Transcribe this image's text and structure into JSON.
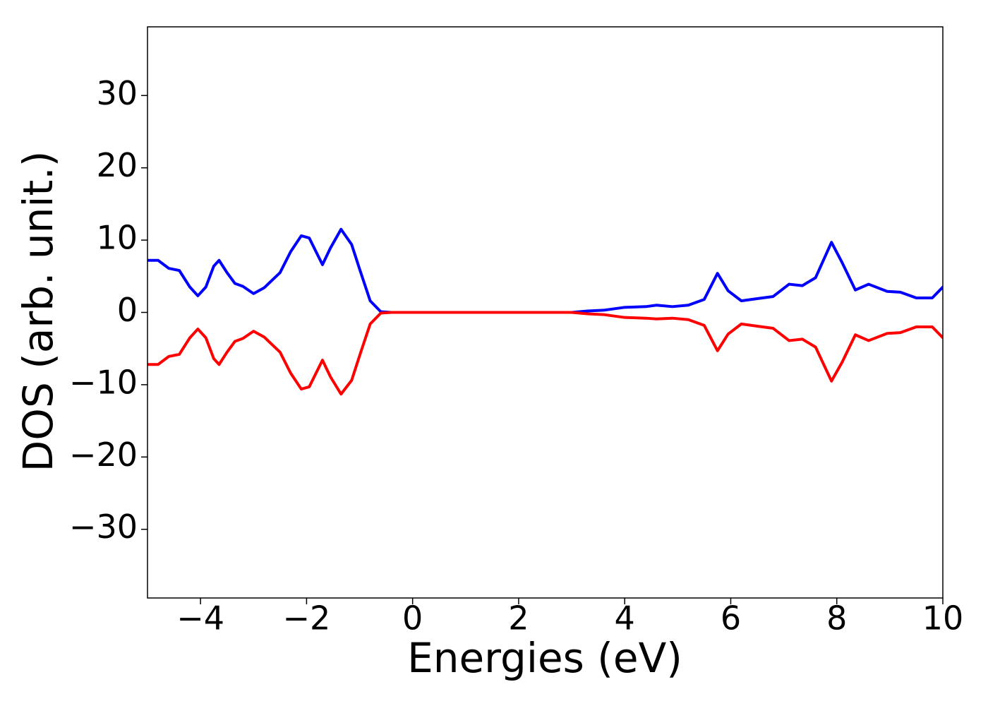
{
  "chart_data": {
    "type": "line",
    "xlabel": "Energies (eV)",
    "ylabel": "DOS (arb. unit.)",
    "x": [
      -5,
      -4.8,
      -4.6,
      -4.4,
      -4.2,
      -4.05,
      -3.9,
      -3.75,
      -3.65,
      -3.5,
      -3.35,
      -3.2,
      -3.0,
      -2.8,
      -2.5,
      -2.3,
      -2.1,
      -1.95,
      -1.7,
      -1.55,
      -1.35,
      -1.15,
      -1.0,
      -0.8,
      -0.6,
      -0.4,
      0,
      1,
      2,
      3,
      3.3,
      3.6,
      4.0,
      4.4,
      4.6,
      4.9,
      5.2,
      5.5,
      5.75,
      5.95,
      6.2,
      6.5,
      6.8,
      7.1,
      7.35,
      7.6,
      7.9,
      8.1,
      8.35,
      8.6,
      8.95,
      9.2,
      9.5,
      9.8,
      10
    ],
    "series": [
      {
        "color": "#0000ff",
        "values": [
          7.2,
          7.2,
          6.1,
          5.8,
          3.5,
          2.3,
          3.5,
          6.4,
          7.2,
          5.5,
          4.0,
          3.6,
          2.6,
          3.4,
          5.5,
          8.4,
          10.6,
          10.3,
          6.6,
          8.9,
          11.5,
          9.4,
          6.0,
          1.6,
          0.1,
          0,
          0,
          0,
          0,
          0,
          0.2,
          0.3,
          0.7,
          0.8,
          1.0,
          0.8,
          1.0,
          1.8,
          5.4,
          3.0,
          1.6,
          1.9,
          2.2,
          3.9,
          3.7,
          4.8,
          9.7,
          6.9,
          3.1,
          3.9,
          2.9,
          2.8,
          2.0,
          2.0,
          3.5
        ]
      },
      {
        "color": "#ff0000",
        "values": [
          -7.2,
          -7.2,
          -6.1,
          -5.8,
          -3.5,
          -2.3,
          -3.5,
          -6.4,
          -7.2,
          -5.5,
          -4.0,
          -3.6,
          -2.6,
          -3.4,
          -5.5,
          -8.4,
          -10.6,
          -10.3,
          -6.6,
          -8.9,
          -11.3,
          -9.4,
          -6.0,
          -1.6,
          -0.1,
          0,
          0,
          0,
          0,
          0,
          -0.2,
          -0.3,
          -0.7,
          -0.8,
          -0.9,
          -0.8,
          -1.0,
          -1.8,
          -5.3,
          -3.0,
          -1.6,
          -1.9,
          -2.2,
          -3.9,
          -3.7,
          -4.8,
          -9.5,
          -6.9,
          -3.1,
          -3.9,
          -2.9,
          -2.8,
          -2.0,
          -2.0,
          -3.5
        ]
      }
    ],
    "xlim": [
      -5,
      10
    ],
    "xticks": [
      {
        "value": -4,
        "label": "−4"
      },
      {
        "value": -2,
        "label": "−2"
      },
      0,
      2,
      4,
      6,
      8,
      10
    ],
    "ylim": [
      -39.5,
      39.5
    ],
    "yticks": [
      {
        "value": -30,
        "label": "−30"
      },
      {
        "value": -20,
        "label": "−20"
      },
      {
        "value": -10,
        "label": "−10"
      },
      0,
      10,
      20,
      30
    ]
  }
}
